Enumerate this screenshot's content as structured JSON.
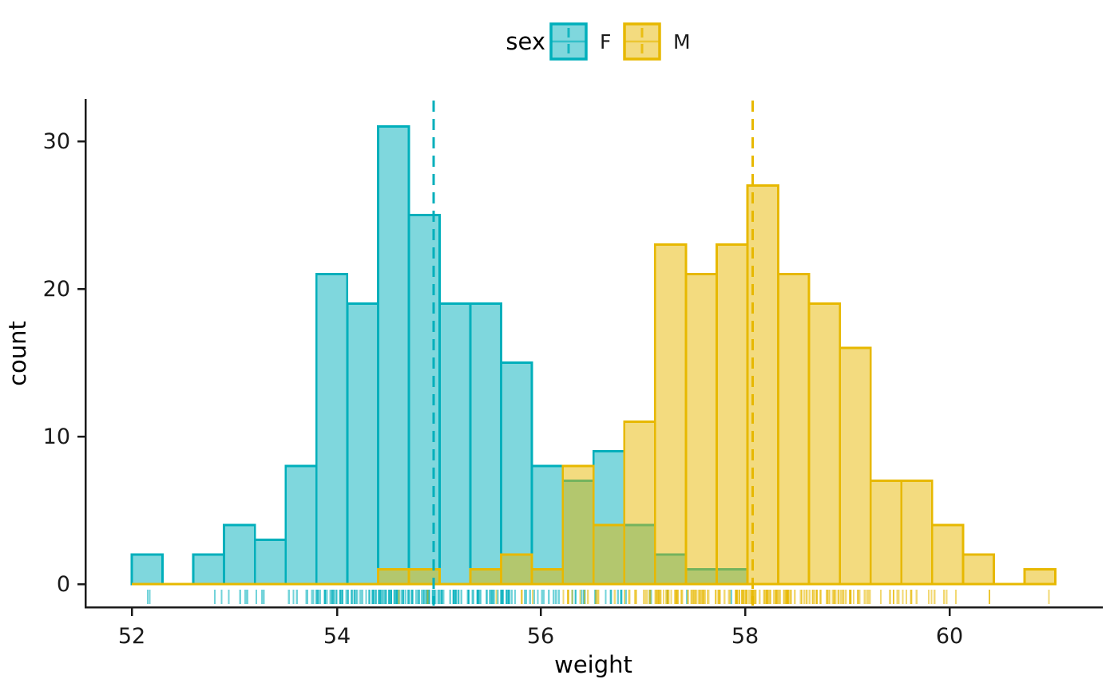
{
  "chart": {
    "legend": {
      "title": "sex",
      "items": [
        {
          "label": "F",
          "color": "#00AFBB"
        },
        {
          "label": "M",
          "color": "#E7B800"
        }
      ]
    },
    "x_axis": {
      "title": "weight",
      "ticks": [
        "52",
        "54",
        "56",
        "58",
        "60"
      ]
    },
    "y_axis": {
      "title": "count",
      "ticks": [
        "0",
        "10",
        "20",
        "30"
      ]
    }
  },
  "chart_data": {
    "type": "bar",
    "subtype": "overlaid-histogram-with-rug-and-mean-lines",
    "title": "",
    "xlabel": "weight",
    "ylabel": "count",
    "legend_title": "sex",
    "legend_position": "top",
    "grid": false,
    "bin_start": 52.0,
    "bin_width": 0.3,
    "n_bins": 30,
    "x_ticks": [
      52,
      54,
      56,
      58,
      60
    ],
    "y_ticks": [
      0,
      10,
      20,
      30
    ],
    "xlim": [
      51.55,
      61.45
    ],
    "ylim": [
      0,
      32.6
    ],
    "fill_alpha": 0.5,
    "mean_line_style": "dashed",
    "rug": true,
    "series": [
      {
        "name": "F",
        "color": "#00AFBB",
        "mean": 54.94,
        "n": 200,
        "counts": [
          2,
          0,
          2,
          4,
          3,
          8,
          21,
          19,
          31,
          25,
          19,
          19,
          15,
          8,
          7,
          9,
          4,
          2,
          1,
          1,
          0,
          0,
          0,
          0,
          0,
          0,
          0,
          0,
          0,
          0
        ]
      },
      {
        "name": "M",
        "color": "#E7B800",
        "mean": 58.05,
        "n": 200,
        "counts": [
          0,
          0,
          0,
          0,
          0,
          0,
          0,
          0,
          1,
          1,
          0,
          1,
          2,
          1,
          8,
          4,
          11,
          23,
          21,
          23,
          27,
          21,
          19,
          16,
          7,
          7,
          4,
          2,
          0,
          1
        ]
      }
    ]
  }
}
